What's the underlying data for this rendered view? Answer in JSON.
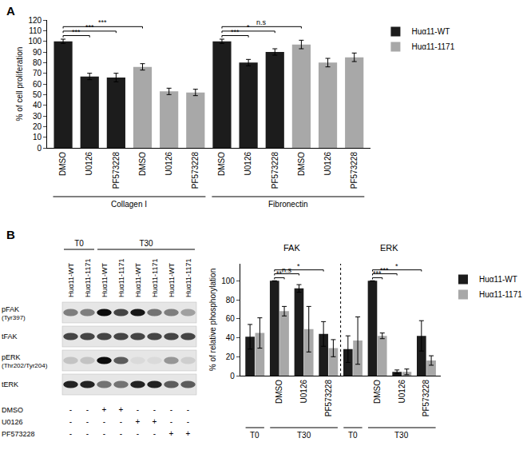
{
  "chart_data": [
    {
      "panel": "A",
      "type": "bar",
      "y_label": "% of cell proliferation",
      "categories": [
        "DMSO",
        "U0126",
        "PF573228",
        "DMSO",
        "U0126",
        "PF573228",
        "DMSO",
        "U0126",
        "PF573228",
        "DMSO",
        "U0126",
        "PF573228"
      ],
      "groups": [
        {
          "text": "Collagen I",
          "from": 0,
          "to": 5
        },
        {
          "text": "Fibronectin",
          "from": 6,
          "to": 11
        }
      ],
      "series": [
        {
          "name": "Huα11-WT",
          "color": "#1c1c1c",
          "values": [
            100,
            67,
            66,
            null,
            null,
            null,
            100,
            80,
            90,
            null,
            null,
            null
          ],
          "errors": [
            2,
            3,
            4,
            null,
            null,
            null,
            2,
            3,
            3,
            null,
            null,
            null
          ]
        },
        {
          "name": "Huα11-1171",
          "color": "#a8a8a8",
          "values": [
            null,
            null,
            null,
            76,
            53,
            52,
            null,
            null,
            null,
            97,
            80,
            85
          ],
          "errors": [
            null,
            null,
            null,
            3,
            3,
            3,
            null,
            null,
            null,
            4,
            4,
            4
          ]
        }
      ],
      "annotations": [
        {
          "text": "***",
          "from": [
            0,
            0
          ],
          "to": [
            1,
            0
          ]
        },
        {
          "text": "***",
          "from": [
            0,
            0
          ],
          "to": [
            2,
            0
          ]
        },
        {
          "text": "***",
          "from": [
            0,
            0
          ],
          "to": [
            3,
            1
          ]
        },
        {
          "text": "***",
          "from": [
            6,
            0
          ],
          "to": [
            7,
            0
          ]
        },
        {
          "text": "*",
          "from": [
            6,
            0
          ],
          "to": [
            8,
            0
          ]
        },
        {
          "text": "n.s",
          "from": [
            6,
            0
          ],
          "to": [
            9,
            1
          ]
        }
      ],
      "ylim": [
        0,
        120
      ],
      "yticks": [
        0,
        10,
        20,
        30,
        40,
        50,
        60,
        70,
        80,
        90,
        100,
        110,
        120
      ],
      "grid": false,
      "legend": "right"
    },
    {
      "panel": "B",
      "type": "bar",
      "y_label": "% of relative phosphorylation",
      "categories": [
        null,
        "DMSO",
        "U0126",
        "PF573228",
        null,
        "DMSO",
        "U0126",
        "PF573228"
      ],
      "groups": [
        {
          "text": "T0",
          "from": 0,
          "to": 0
        },
        {
          "text": "T30",
          "from": 1,
          "to": 3
        },
        {
          "text": "T0",
          "from": 4,
          "to": 4
        },
        {
          "text": "T30",
          "from": 5,
          "to": 7
        }
      ],
      "headers": [
        {
          "text": "FAK",
          "from": 0,
          "to": 3
        },
        {
          "text": "ERK",
          "from": 4,
          "to": 7
        }
      ],
      "series": [
        {
          "name": "Huα11-WT",
          "color": "#1c1c1c",
          "values": [
            41,
            100,
            92,
            44,
            28,
            100,
            4,
            42
          ],
          "errors": [
            13,
            0,
            4,
            13,
            14,
            0,
            2,
            16
          ]
        },
        {
          "name": "Huα11-1171",
          "color": "#a8a8a8",
          "values": [
            45,
            68,
            49,
            29,
            37,
            42,
            4,
            16
          ],
          "errors": [
            16,
            5,
            24,
            9,
            25,
            3,
            3,
            5
          ]
        }
      ],
      "annotations": [
        {
          "text": "**",
          "from": [
            1,
            0
          ],
          "to": [
            1,
            1
          ]
        },
        {
          "text": "n.s",
          "from": [
            1,
            0
          ],
          "to": [
            2,
            0
          ]
        },
        {
          "text": "*",
          "from": [
            1,
            0
          ],
          "to": [
            3,
            0
          ]
        },
        {
          "text": "***",
          "from": [
            5,
            0
          ],
          "to": [
            5,
            1
          ]
        },
        {
          "text": "***",
          "from": [
            5,
            0
          ],
          "to": [
            6,
            0
          ]
        },
        {
          "text": "*",
          "from": [
            5,
            0
          ],
          "to": [
            7,
            0
          ]
        }
      ],
      "ylim": [
        0,
        118
      ],
      "yticks": [
        0,
        20,
        40,
        60,
        80,
        100
      ],
      "grid": false,
      "legend": "right"
    }
  ],
  "blot": {
    "time_headers": [
      {
        "text": "T0",
        "lanes": [
          0,
          1
        ]
      },
      {
        "text": "T30",
        "lanes": [
          2,
          7
        ]
      }
    ],
    "lanes": [
      "Huα11-WT",
      "Huα11-1171",
      "Huα11-WT",
      "Huα11-1171",
      "Huα11-WT",
      "Huα11-1171",
      "Huα11-WT",
      "Huα11-1171"
    ],
    "rows": [
      {
        "label": "pFAK",
        "sublabel": "(Tyr397)",
        "intensity": [
          0.45,
          0.45,
          0.95,
          0.7,
          0.9,
          0.5,
          0.45,
          0.3
        ]
      },
      {
        "label": "tFAK",
        "intensity": [
          0.7,
          0.7,
          0.7,
          0.7,
          0.7,
          0.7,
          0.7,
          0.7
        ]
      },
      {
        "label": "pERK",
        "sublabel": "(Thr202/Tyr204)",
        "intensity": [
          0.15,
          0.15,
          0.95,
          0.6,
          0.05,
          0.05,
          0.35,
          0.1
        ]
      },
      {
        "label": "tERK",
        "intensity": [
          0.85,
          0.85,
          0.5,
          0.5,
          0.85,
          0.85,
          0.6,
          0.6
        ]
      }
    ],
    "treatments": [
      {
        "label": "DMSO",
        "signs": [
          "-",
          "-",
          "+",
          "+",
          "-",
          "-",
          "-",
          "-"
        ]
      },
      {
        "label": "U0126",
        "signs": [
          "-",
          "-",
          "-",
          "-",
          "+",
          "+",
          "-",
          "-"
        ]
      },
      {
        "label": "PF573228",
        "signs": [
          "-",
          "-",
          "-",
          "-",
          "-",
          "-",
          "+",
          "+"
        ]
      }
    ]
  }
}
